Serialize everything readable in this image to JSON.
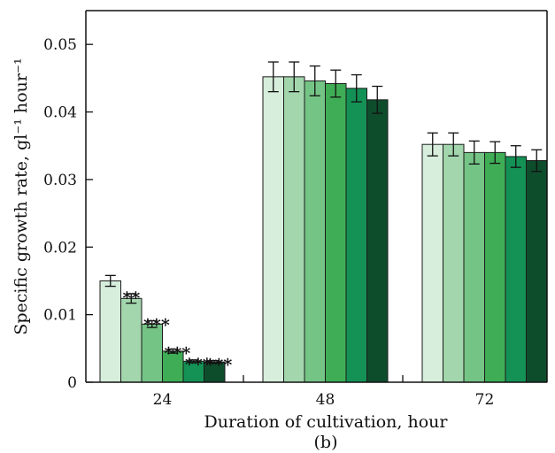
{
  "chart_data": {
    "type": "bar",
    "xlabel": "Duration of cultivation, hour",
    "ylabel": "Specific growth rate, gl⁻¹ hour⁻¹",
    "panel_label": "(b)",
    "categories": [
      "24",
      "48",
      "72"
    ],
    "ylim": [
      0,
      0.055
    ],
    "yticks": [
      "0",
      "0.01",
      "0.02",
      "0.03",
      "0.04",
      "0.05"
    ],
    "ytick_values": [
      0,
      0.01,
      0.02,
      0.03,
      0.04,
      0.05
    ],
    "grid": false,
    "series": [
      {
        "color": "#d6eedb",
        "values": [
          0.015,
          0.0452,
          0.0352
        ],
        "errors": [
          0.0008,
          0.0022,
          0.0017
        ],
        "significance": [
          "",
          "",
          ""
        ]
      },
      {
        "color": "#a3d6ad",
        "values": [
          0.0124,
          0.0452,
          0.0352
        ],
        "errors": [
          0.0007,
          0.0022,
          0.0017
        ],
        "significance": [
          "**",
          "",
          ""
        ]
      },
      {
        "color": "#74c486",
        "values": [
          0.0086,
          0.0446,
          0.034
        ],
        "errors": [
          0.0005,
          0.0022,
          0.0017
        ],
        "significance": [
          "***",
          "",
          ""
        ]
      },
      {
        "color": "#3fad55",
        "values": [
          0.0046,
          0.0442,
          0.034
        ],
        "errors": [
          0.0003,
          0.002,
          0.0016
        ],
        "significance": [
          "***",
          "",
          ""
        ]
      },
      {
        "color": "#149155",
        "values": [
          0.0031,
          0.0435,
          0.0334
        ],
        "errors": [
          0.0002,
          0.002,
          0.0016
        ],
        "significance": [
          "***",
          "",
          ""
        ]
      },
      {
        "color": "#0e4d2c",
        "values": [
          0.003,
          0.0418,
          0.0328
        ],
        "errors": [
          0.0002,
          0.002,
          0.0016
        ],
        "significance": [
          "***",
          "",
          ""
        ]
      }
    ]
  }
}
